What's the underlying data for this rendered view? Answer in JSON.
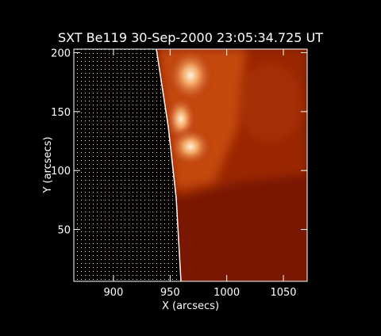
{
  "chart_data": {
    "type": "image",
    "title": "SXT Be119 30-Sep-2000 23:05:34.725 UT",
    "x_label": "X (arcsecs)",
    "y_label": "Y (arcsecs)",
    "xlim": [
      865,
      1071
    ],
    "ylim": [
      6,
      203
    ],
    "xticks": [
      900,
      950,
      1000,
      1050
    ],
    "yticks": [
      50,
      100,
      150,
      200
    ]
  }
}
